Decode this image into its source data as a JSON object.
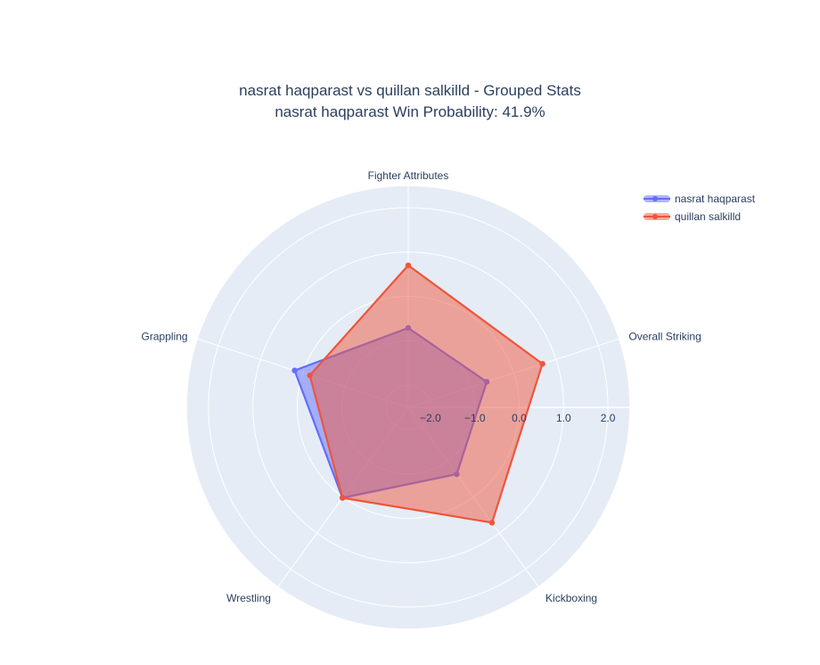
{
  "title": {
    "line1": "nasrat haqparast vs quillan salkilld - Grouped Stats",
    "line2": "nasrat haqparast Win Probability: 41.9%"
  },
  "colors": {
    "page_bg": "#ffffff",
    "polar_bg": "#e5ecf6",
    "grid": "#ffffff",
    "text": "#2a3f5f"
  },
  "legend": {
    "items": [
      {
        "label": "nasrat haqparast",
        "color": "#636efa"
      },
      {
        "label": "quillan salkilld",
        "color": "#ef553b"
      }
    ]
  },
  "chart_data": {
    "type": "radar",
    "title": "nasrat haqparast vs quillan salkilld - Grouped Stats | nasrat haqparast Win Probability: 41.9%",
    "categories": [
      "Fighter Attributes",
      "Overall Striking",
      "Kickboxing",
      "Wrestling",
      "Grappling"
    ],
    "series": [
      {
        "name": "nasrat haqparast",
        "color": "#636efa",
        "fill_opacity": 0.5,
        "values": [
          -0.71,
          -0.64,
          -0.64,
          0.02,
          0.19
        ]
      },
      {
        "name": "quillan salkilld",
        "color": "#ef553b",
        "fill_opacity": 0.5,
        "values": [
          0.7,
          0.68,
          0.71,
          0.02,
          -0.17
        ]
      }
    ],
    "radial_range": [
      -2.5,
      2.5
    ],
    "radial_tick_labels": [
      "−2.0",
      "−1.0",
      "0.0",
      "1.0",
      "2.0"
    ],
    "radial_tick_values": [
      -2.0,
      -1.0,
      0.0,
      1.0,
      2.0
    ],
    "start_angle_deg": 90,
    "direction": "clockwise",
    "grid": true,
    "legend_position": "top-right"
  }
}
